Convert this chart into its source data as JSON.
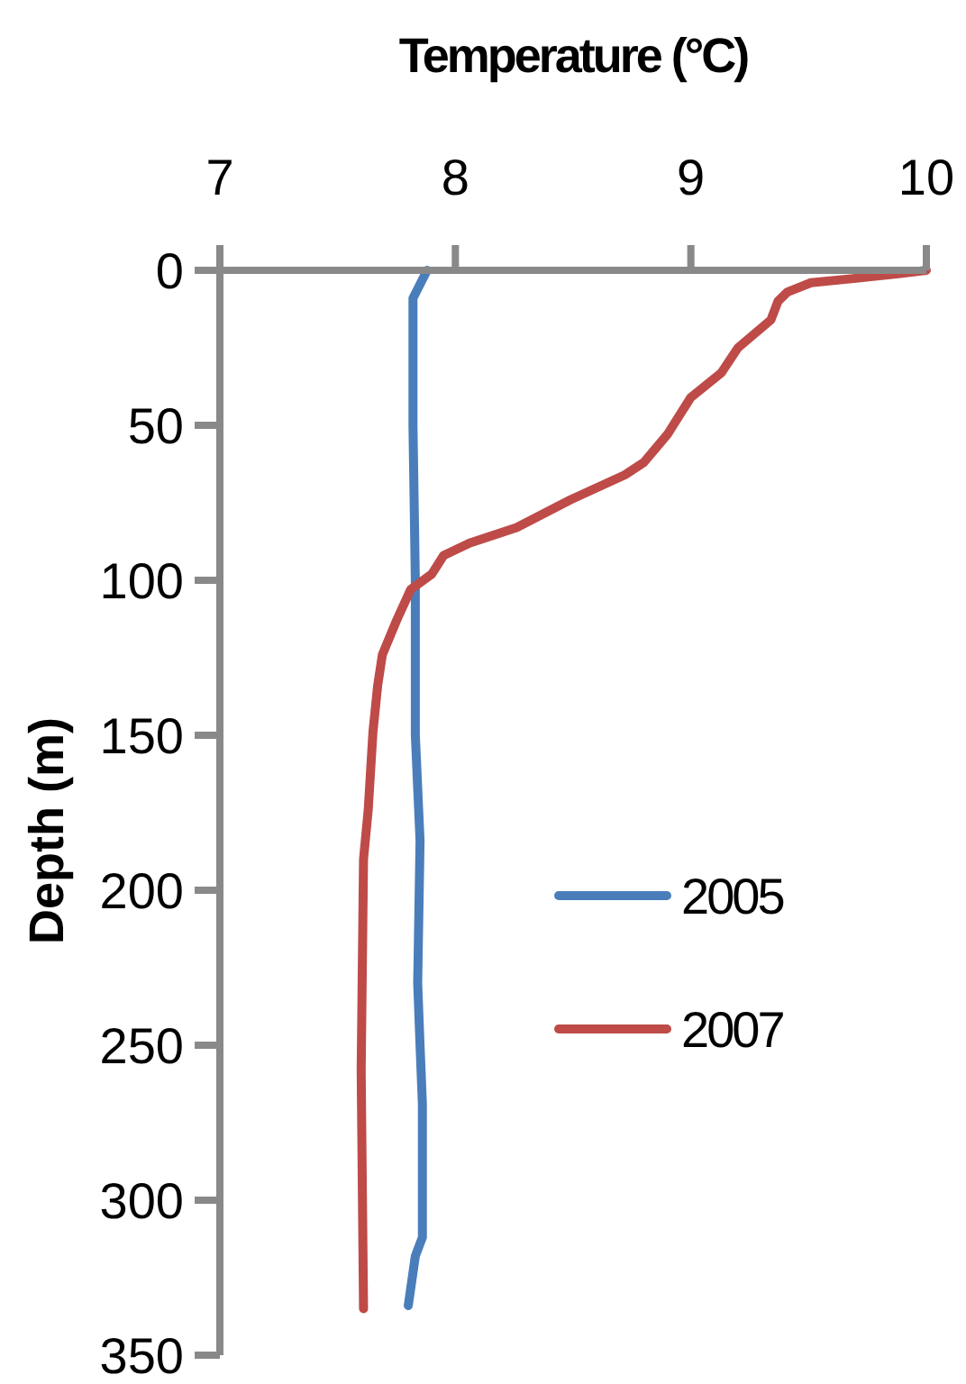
{
  "chart_data": {
    "type": "line",
    "xlabel": "Temperature (°C)",
    "ylabel": "Depth (m)",
    "xlim": [
      7,
      10
    ],
    "xticks": [
      7,
      8,
      9,
      10
    ],
    "ylim": [
      350,
      0
    ],
    "yticks": [
      0,
      50,
      100,
      150,
      200,
      250,
      300,
      350
    ],
    "legend": "right",
    "grid": false,
    "series": [
      {
        "name": "2005",
        "color": "#4a7ebb",
        "x": [
          7.88,
          7.82,
          7.82,
          7.83,
          7.83,
          7.85,
          7.84,
          7.85,
          7.86,
          7.86,
          7.83,
          7.8
        ],
        "values": [
          0,
          9,
          50,
          100,
          150,
          184,
          230,
          250,
          269,
          312,
          318,
          334
        ]
      },
      {
        "name": "2007",
        "color": "#be4b48",
        "x": [
          10.0,
          9.89,
          9.71,
          9.51,
          9.41,
          9.37,
          9.34,
          9.2,
          9.13,
          9.0,
          8.9,
          8.8,
          8.72,
          8.49,
          8.26,
          8.06,
          7.95,
          7.9,
          7.81,
          7.75,
          7.69,
          7.67,
          7.65,
          7.63,
          7.61,
          7.6,
          7.61
        ],
        "values": [
          0,
          1,
          2.5,
          4,
          7,
          10,
          16,
          25,
          33,
          41,
          53,
          62,
          66,
          74,
          83,
          88,
          92,
          98,
          103,
          113,
          124,
          134,
          149,
          174,
          190,
          258,
          335
        ]
      }
    ]
  }
}
